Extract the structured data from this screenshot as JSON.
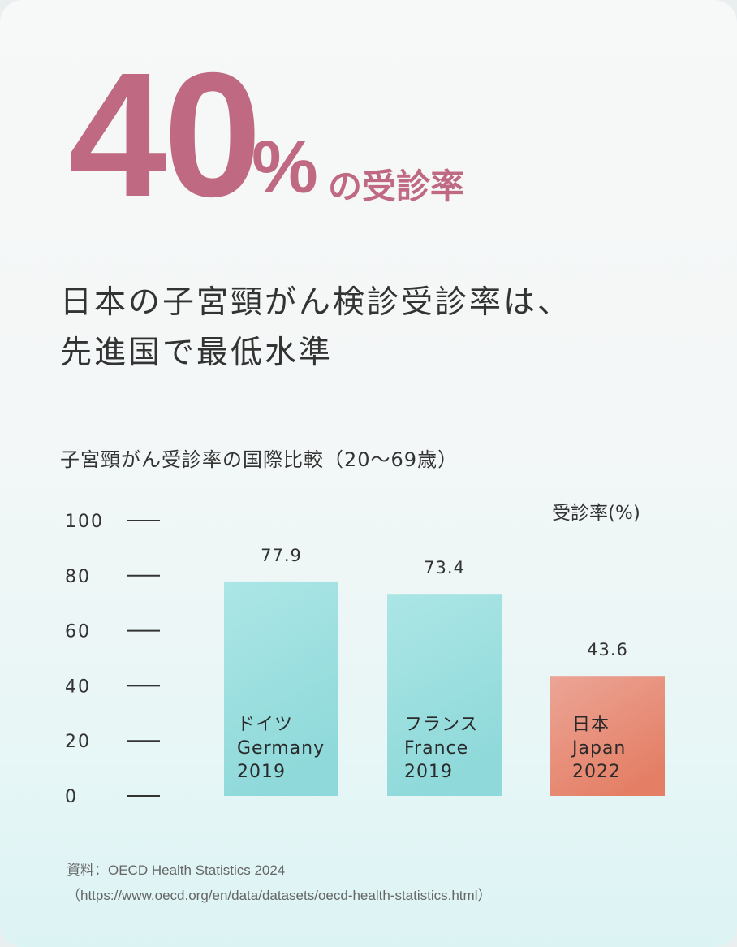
{
  "hero": {
    "number": "40",
    "unit": "%",
    "suffix": "の受診率"
  },
  "headline": {
    "line1": "日本の子宮頸がん検診受診率は、",
    "line2": "先進国で最低水準"
  },
  "chart_data": {
    "type": "bar",
    "title": "子宮頸がん受診率の国際比較（20〜69歳）",
    "ylabel": "受診率(%)",
    "ylim": [
      0,
      100
    ],
    "yticks": [
      "0",
      "20",
      "40",
      "60",
      "80",
      "100"
    ],
    "categories": [
      {
        "ja": "ドイツ",
        "en": "Germany",
        "year": "2019"
      },
      {
        "ja": "フランス",
        "en": "France",
        "year": "2019"
      },
      {
        "ja": "日本",
        "en": "Japan",
        "year": "2022"
      }
    ],
    "values": [
      77.9,
      73.4,
      43.6
    ],
    "value_labels": [
      "77.9",
      "73.4",
      "43.6"
    ],
    "colors": [
      "#a6e3e3",
      "#a6e3e3",
      "#eb9784"
    ],
    "grid": false
  },
  "source": {
    "line1": "資料：OECD Health Statistics 2024",
    "line2": "（https://www.oecd.org/en/data/datasets/oecd-health-statistics.html）"
  },
  "colors": {
    "accent": "#bf6a82",
    "text": "#333333"
  }
}
